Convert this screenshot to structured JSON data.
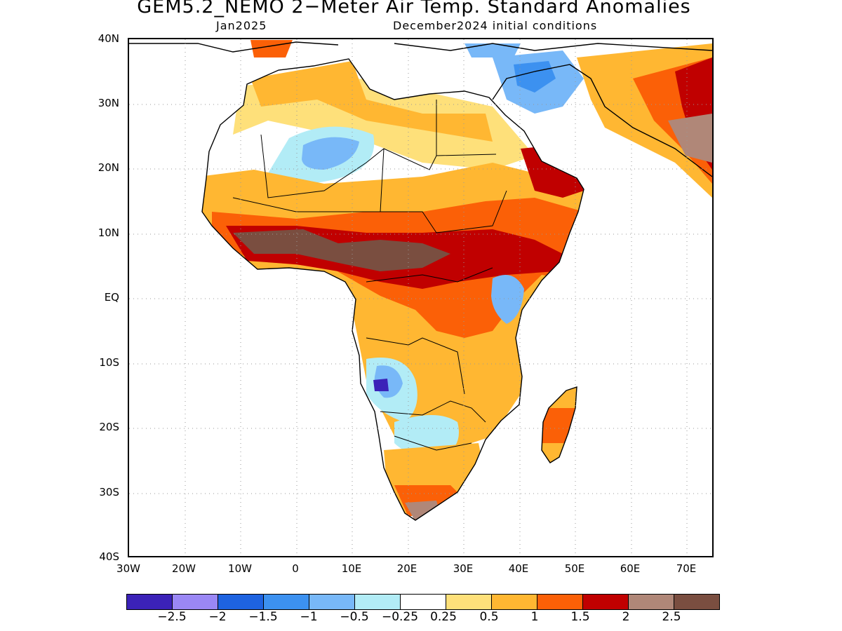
{
  "title": "GEM5.2_NEMO 2−Meter Air Temp. Standard Anomalies",
  "subtitle_left": "Jan2025",
  "subtitle_right": "December2024 initial conditions",
  "lat_labels": [
    "40N",
    "30N",
    "20N",
    "10N",
    "EQ",
    "10S",
    "20S",
    "30S",
    "40S"
  ],
  "lon_labels": [
    "30W",
    "20W",
    "10W",
    "0",
    "10E",
    "20E",
    "30E",
    "40E",
    "50E",
    "60E",
    "70E"
  ],
  "colorbar": {
    "colors": [
      "#3b22b8",
      "#9a87f5",
      "#1e63e0",
      "#3c91f0",
      "#78b8f8",
      "#b2ecf6",
      "#ffffff",
      "#fee07a",
      "#ffb732",
      "#fb6007",
      "#c00000",
      "#b08778",
      "#7a4e40"
    ],
    "labels": [
      "−2.5",
      "−2",
      "−1.5",
      "−1",
      "−0.5",
      "−0.25",
      "0.25",
      "0.5",
      "1",
      "1.5",
      "2",
      "2.5"
    ]
  }
}
